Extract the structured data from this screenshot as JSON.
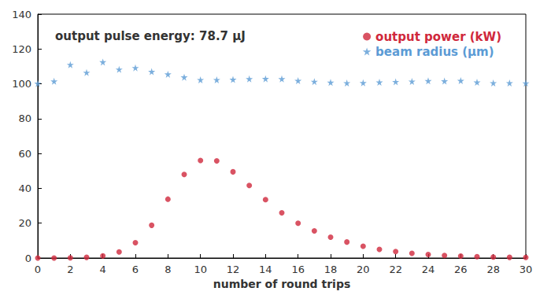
{
  "chart_data": {
    "type": "scatter",
    "annotation": "output pulse energy: 78.7 µJ",
    "xlabel": "number of round trips",
    "x": [
      0,
      1,
      2,
      3,
      4,
      5,
      6,
      7,
      8,
      9,
      10,
      11,
      12,
      13,
      14,
      15,
      16,
      17,
      18,
      19,
      20,
      21,
      22,
      23,
      24,
      25,
      26,
      27,
      28,
      29,
      30
    ],
    "series": [
      {
        "name": "output power (kW)",
        "color": "#d0283c",
        "marker": "circle",
        "values": [
          0,
          0,
          0.1,
          0.4,
          1.2,
          3.5,
          8.8,
          18.8,
          33.8,
          48,
          56,
          55.8,
          49.5,
          41.7,
          33.5,
          26,
          20,
          15.6,
          12,
          9.2,
          6.8,
          5,
          3.7,
          2.7,
          2,
          1.5,
          1.1,
          0.8,
          0.6,
          0.4,
          0.3
        ]
      },
      {
        "name": "beam radius (µm)",
        "color": "#5b9bd5",
        "marker": "star",
        "values": [
          100.2,
          101.5,
          111,
          106.5,
          112.5,
          108.3,
          109.2,
          107,
          105.5,
          103.8,
          102.3,
          102.3,
          102.5,
          102.8,
          102.9,
          102.8,
          101.8,
          101.3,
          100.8,
          100.5,
          100.6,
          100.9,
          101.2,
          101.4,
          101.7,
          101.6,
          101.8,
          100.9,
          100.5,
          100.5,
          100.4
        ]
      }
    ],
    "xlim": [
      0,
      30
    ],
    "xticks": [
      0,
      2,
      4,
      6,
      8,
      10,
      12,
      14,
      16,
      18,
      20,
      22,
      24,
      26,
      28,
      30
    ],
    "ylim": [
      0,
      140
    ],
    "yticks": [
      0,
      20,
      40,
      60,
      80,
      100,
      120,
      140
    ],
    "grid": false,
    "legend": "top-right"
  }
}
